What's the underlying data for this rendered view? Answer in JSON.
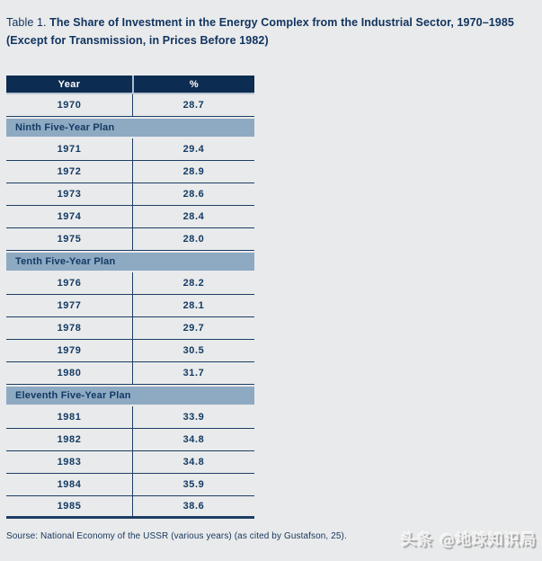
{
  "title": {
    "prefix": "Table 1.",
    "main": "The Share of Investment in the Energy Complex from the Industrial Sector, 1970–1985",
    "sub": "(Except for Transmission, in Prices Before 1982)"
  },
  "table": {
    "columns": [
      "Year",
      "%"
    ],
    "sections": [
      {
        "header": "",
        "rows": [
          {
            "year": "1970",
            "value": "28.7"
          }
        ]
      },
      {
        "header": "Ninth Five-Year Plan",
        "rows": [
          {
            "year": "1971",
            "value": "29.4"
          },
          {
            "year": "1972",
            "value": "28.9"
          },
          {
            "year": "1973",
            "value": "28.6"
          },
          {
            "year": "1974",
            "value": "28.4"
          },
          {
            "year": "1975",
            "value": "28.0"
          }
        ]
      },
      {
        "header": "Tenth Five-Year Plan",
        "rows": [
          {
            "year": "1976",
            "value": "28.2"
          },
          {
            "year": "1977",
            "value": "28.1"
          },
          {
            "year": "1978",
            "value": "29.7"
          },
          {
            "year": "1979",
            "value": "30.5"
          },
          {
            "year": "1980",
            "value": "31.7"
          }
        ]
      },
      {
        "header": "Eleventh Five-Year Plan",
        "rows": [
          {
            "year": "1981",
            "value": "33.9"
          },
          {
            "year": "1982",
            "value": "34.8"
          },
          {
            "year": "1983",
            "value": "34.8"
          },
          {
            "year": "1984",
            "value": "35.9"
          },
          {
            "year": "1985",
            "value": "38.6"
          }
        ]
      }
    ]
  },
  "footer": {
    "source": "Sourse: National Economy of the USSR (various years) (as cited by Gustafson, 25)."
  },
  "watermark": {
    "text": "头条 @地球知识局"
  },
  "colors": {
    "page_background": "#e9eaeb",
    "header_background": "#0d2c51",
    "section_bar_background": "#8ea9c2",
    "text_navy": "#123a63",
    "border_navy": "#1c3e65",
    "header_text": "#ffffff"
  },
  "chart_data": {
    "type": "table",
    "title": "Table 1. The Share of Investment in the Energy Complex from the Industrial Sector, 1970–1985 (Except for Transmission, in Prices Before 1982)",
    "columns": [
      "Year",
      "%"
    ],
    "rows": [
      [
        "1970",
        28.7
      ],
      [
        "1971",
        29.4
      ],
      [
        "1972",
        28.9
      ],
      [
        "1973",
        28.6
      ],
      [
        "1974",
        28.4
      ],
      [
        "1975",
        28.0
      ],
      [
        "1976",
        28.2
      ],
      [
        "1977",
        28.1
      ],
      [
        "1978",
        29.7
      ],
      [
        "1979",
        30.5
      ],
      [
        "1980",
        31.7
      ],
      [
        "1981",
        33.9
      ],
      [
        "1982",
        34.8
      ],
      [
        "1983",
        34.8
      ],
      [
        "1984",
        35.9
      ],
      [
        "1985",
        38.6
      ]
    ],
    "group_labels": [
      "Ninth Five-Year Plan",
      "Tenth Five-Year Plan",
      "Eleventh Five-Year Plan"
    ],
    "source": "Sourse: National Economy of the USSR (various years) (as cited by Gustafson, 25)."
  }
}
